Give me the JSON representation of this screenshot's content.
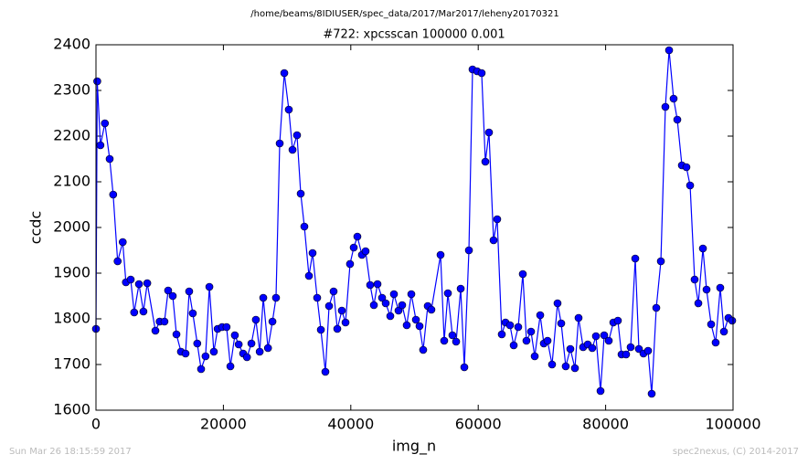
{
  "chart_data": {
    "type": "line",
    "suptitle": "/home/beams/8IDIUSER/spec_data/2017/Mar2017/leheny20170321",
    "title": "#722: xpcsscan 100000 0.001",
    "xlabel": "img_n",
    "ylabel": "ccdc",
    "footer_left": "Sun Mar 26 18:15:59 2017",
    "footer_right": "spec2nexus, (C) 2014-2017",
    "xlim": [
      0,
      100000
    ],
    "xticks": [
      0,
      20000,
      40000,
      60000,
      80000,
      100000
    ],
    "ylim": [
      1600,
      2400
    ],
    "yticks": [
      1600,
      1700,
      1800,
      1900,
      2000,
      2100,
      2200,
      2300,
      2400
    ],
    "x": [
      0,
      200,
      700,
      1400,
      2150,
      2700,
      3400,
      4200,
      4700,
      5450,
      6000,
      6750,
      7450,
      8050,
      9330,
      10000,
      10750,
      11330,
      12050,
      12630,
      13340,
      14060,
      14630,
      15200,
      15900,
      16500,
      17200,
      17800,
      18500,
      19100,
      19800,
      20500,
      21100,
      21800,
      22400,
      23100,
      23700,
      24400,
      25100,
      25700,
      26260,
      27000,
      27700,
      28260,
      28840,
      29560,
      30270,
      30850,
      31560,
      32140,
      32710,
      33430,
      34000,
      34720,
      35300,
      36010,
      36590,
      37300,
      37880,
      38590,
      39170,
      39880,
      40460,
      41030,
      41750,
      42320,
      43040,
      43620,
      44190,
      44910,
      45480,
      46200,
      46770,
      47490,
      48060,
      48780,
      49500,
      50220,
      50790,
      51360,
      52080,
      52650,
      54090,
      54660,
      55240,
      55950,
      56530,
      57250,
      57820,
      58540,
      59110,
      59830,
      60540,
      61120,
      61690,
      62410,
      62980,
      63700,
      64280,
      64990,
      65570,
      66280,
      67000,
      67570,
      68290,
      68870,
      69730,
      70300,
      70880,
      71590,
      72450,
      73030,
      73740,
      74460,
      75180,
      75750,
      76470,
      77190,
      77900,
      78480,
      79200,
      79770,
      80490,
      81210,
      81920,
      82500,
      83210,
      83930,
      84650,
      85220,
      85940,
      86660,
      87230,
      87950,
      88670,
      89380,
      89960,
      90670,
      91250,
      91970,
      92680,
      93260,
      93970,
      94550,
      95270,
      95840,
      96560,
      97270,
      97990,
      98570,
      99280,
      99860
    ],
    "series": [
      {
        "name": "ccdc",
        "color": "#0000ff",
        "values": [
          1778,
          2320,
          2180,
          2228,
          2150,
          2072,
          1926,
          1968,
          1880,
          1886,
          1814,
          1876,
          1816,
          1878,
          1774,
          1794,
          1794,
          1862,
          1850,
          1766,
          1728,
          1724,
          1860,
          1812,
          1746,
          1690,
          1718,
          1870,
          1728,
          1778,
          1782,
          1782,
          1696,
          1764,
          1744,
          1724,
          1716,
          1746,
          1798,
          1728,
          1846,
          1736,
          1794,
          1846,
          2184,
          2338,
          2258,
          2170,
          2202,
          2074,
          2002,
          1894,
          1944,
          1846,
          1776,
          1684,
          1828,
          1860,
          1778,
          1818,
          1792,
          1920,
          1956,
          1980,
          1940,
          1948,
          1874,
          1830,
          1876,
          1846,
          1834,
          1806,
          1854,
          1818,
          1830,
          1786,
          1854,
          1798,
          1784,
          1732,
          1828,
          1820,
          1940,
          1752,
          1856,
          1764,
          1750,
          1866,
          1694,
          1950,
          2346,
          2342,
          2338,
          2144,
          2208,
          1972,
          2018,
          1766,
          1792,
          1786,
          1742,
          1782,
          1898,
          1752,
          1772,
          1718,
          1808,
          1746,
          1752,
          1700,
          1834,
          1790,
          1696,
          1734,
          1692,
          1802,
          1738,
          1744,
          1736,
          1762,
          1642,
          1764,
          1752,
          1792,
          1796,
          1722,
          1722,
          1738,
          1932,
          1734,
          1724,
          1730,
          1636,
          1824,
          1926,
          2264,
          2388,
          2282,
          2236,
          2136,
          2132,
          2092,
          1886,
          1834,
          1954,
          1864,
          1788,
          1748,
          1868,
          1772,
          1802,
          1796
        ]
      }
    ]
  }
}
